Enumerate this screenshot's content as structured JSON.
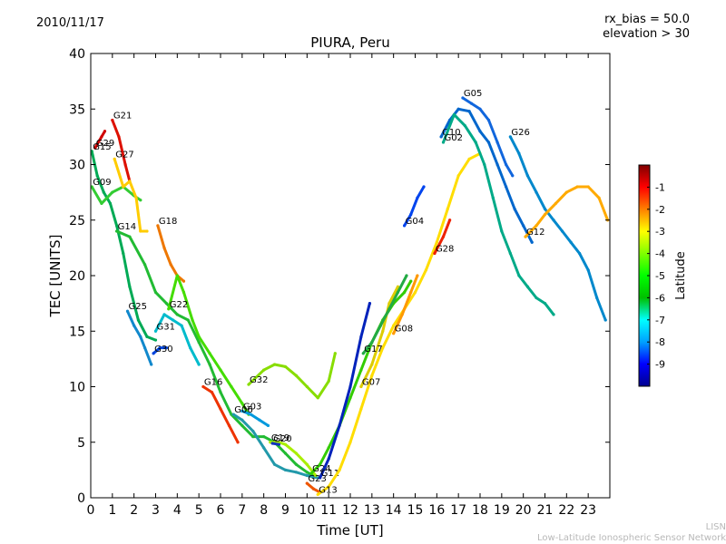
{
  "header": {
    "date": "2010/11/17",
    "rx_bias": "rx_bias = 50.0",
    "elevation": "elevation > 30"
  },
  "footer": {
    "org_short": "LISN",
    "org_full": "Low-Latitude Ionospheric Sensor Network"
  },
  "chart_data": {
    "type": "scatter",
    "title": "PIURA, Peru",
    "xlabel": "Time [UT]",
    "ylabel": "TEC [UNITS]",
    "xlim": [
      0,
      24
    ],
    "ylim": [
      0,
      40
    ],
    "xticks": [
      0,
      1,
      2,
      3,
      4,
      5,
      6,
      7,
      8,
      9,
      10,
      11,
      12,
      13,
      14,
      15,
      16,
      17,
      18,
      19,
      20,
      21,
      22,
      23
    ],
    "yticks": [
      0,
      5,
      10,
      15,
      20,
      25,
      30,
      35,
      40
    ],
    "grid": false,
    "colorbar": {
      "label": "Latitude",
      "range": [
        -10,
        0
      ],
      "ticks": [
        -1,
        -2,
        -3,
        -4,
        -5,
        -6,
        -7,
        -8,
        -9
      ],
      "colormap": [
        "#00008f",
        "#0000ff",
        "#00a0ff",
        "#00ffff",
        "#00c000",
        "#00ff00",
        "#80ff00",
        "#ffff00",
        "#ff8000",
        "#ff0000",
        "#800000"
      ]
    },
    "series": [
      {
        "name": "G29",
        "color": "#d00000",
        "points": [
          [
            0.2,
            31.5
          ],
          [
            0.5,
            32.5
          ],
          [
            0.65,
            33.0
          ]
        ]
      },
      {
        "name": "G15",
        "color": "#00aa55",
        "points": [
          [
            0.05,
            31.2
          ],
          [
            0.3,
            29.0
          ],
          [
            0.6,
            27.5
          ],
          [
            0.9,
            26.5
          ],
          [
            1.2,
            24.5
          ],
          [
            1.5,
            22.0
          ],
          [
            1.8,
            19.0
          ],
          [
            2.2,
            16.0
          ],
          [
            2.6,
            14.5
          ],
          [
            3.0,
            14.2
          ]
        ]
      },
      {
        "name": "G09",
        "color": "#33cc33",
        "points": [
          [
            0.05,
            28.0
          ],
          [
            0.5,
            26.5
          ],
          [
            1.0,
            27.5
          ],
          [
            1.5,
            28.0
          ],
          [
            2.0,
            27.2
          ],
          [
            2.3,
            26.8
          ]
        ]
      },
      {
        "name": "G21",
        "color": "#dd1100",
        "points": [
          [
            1.0,
            34.0
          ],
          [
            1.3,
            32.5
          ],
          [
            1.6,
            30.0
          ],
          [
            1.8,
            28.5
          ]
        ]
      },
      {
        "name": "G27",
        "color": "#ffcc00",
        "points": [
          [
            1.1,
            30.5
          ],
          [
            1.5,
            28.0
          ],
          [
            1.8,
            28.5
          ],
          [
            2.1,
            27.0
          ],
          [
            2.3,
            24.0
          ],
          [
            2.6,
            24.0
          ]
        ]
      },
      {
        "name": "G14",
        "color": "#22bb33",
        "points": [
          [
            1.2,
            24.0
          ],
          [
            1.8,
            23.5
          ],
          [
            2.5,
            21.0
          ],
          [
            3.0,
            18.5
          ],
          [
            3.5,
            17.5
          ],
          [
            4.0,
            16.5
          ],
          [
            4.5,
            16.0
          ],
          [
            5.0,
            14.0
          ],
          [
            5.5,
            12.0
          ],
          [
            6.0,
            9.5
          ],
          [
            6.5,
            7.5
          ],
          [
            7.0,
            6.5
          ],
          [
            7.5,
            5.5
          ],
          [
            8.0,
            5.5
          ],
          [
            8.5,
            5.0
          ],
          [
            9.0,
            4.0
          ],
          [
            9.5,
            3.0
          ],
          [
            10.0,
            2.3
          ],
          [
            10.3,
            2.0
          ]
        ]
      },
      {
        "name": "G18",
        "color": "#ee7700",
        "points": [
          [
            3.1,
            24.5
          ],
          [
            3.4,
            22.5
          ],
          [
            3.7,
            21.0
          ],
          [
            4.0,
            20.0
          ],
          [
            4.3,
            19.5
          ]
        ]
      },
      {
        "name": "G25",
        "color": "#1188cc",
        "points": [
          [
            1.7,
            16.8
          ],
          [
            2.0,
            15.5
          ],
          [
            2.3,
            14.5
          ],
          [
            2.5,
            13.5
          ],
          [
            2.8,
            12.0
          ]
        ]
      },
      {
        "name": "G31",
        "color": "#00bbcc",
        "points": [
          [
            3.0,
            15.0
          ],
          [
            3.4,
            16.5
          ],
          [
            3.8,
            16.0
          ],
          [
            4.2,
            15.5
          ],
          [
            4.6,
            13.5
          ],
          [
            5.0,
            12.0
          ]
        ]
      },
      {
        "name": "G30",
        "color": "#0044dd",
        "points": [
          [
            2.9,
            13.0
          ],
          [
            3.2,
            13.5
          ],
          [
            3.5,
            13.5
          ]
        ]
      },
      {
        "name": "G22",
        "color": "#44dd00",
        "points": [
          [
            3.6,
            17.0
          ],
          [
            4.0,
            20.0
          ],
          [
            4.3,
            18.5
          ],
          [
            4.7,
            16.0
          ],
          [
            5.0,
            14.5
          ],
          [
            5.5,
            13.0
          ],
          [
            6.0,
            11.5
          ],
          [
            6.5,
            10.0
          ],
          [
            7.0,
            8.5
          ],
          [
            7.3,
            7.5
          ]
        ]
      },
      {
        "name": "G16",
        "color": "#ee3300",
        "points": [
          [
            5.2,
            10.0
          ],
          [
            5.6,
            9.5
          ],
          [
            6.0,
            8.0
          ],
          [
            6.4,
            6.5
          ],
          [
            6.8,
            5.0
          ]
        ]
      },
      {
        "name": "G32",
        "color": "#88dd00",
        "points": [
          [
            7.3,
            10.2
          ],
          [
            8.0,
            11.5
          ],
          [
            8.5,
            12.0
          ],
          [
            9.0,
            11.8
          ],
          [
            9.5,
            11.0
          ],
          [
            10.0,
            10.0
          ],
          [
            10.5,
            9.0
          ],
          [
            11.0,
            10.5
          ],
          [
            11.3,
            13.0
          ]
        ]
      },
      {
        "name": "G03",
        "color": "#0099dd",
        "points": [
          [
            7.0,
            7.8
          ],
          [
            7.4,
            7.5
          ],
          [
            7.8,
            7.0
          ],
          [
            8.2,
            6.5
          ]
        ]
      },
      {
        "name": "G06",
        "color": "#2299aa",
        "points": [
          [
            6.6,
            7.5
          ],
          [
            7.0,
            7.0
          ],
          [
            7.5,
            6.0
          ],
          [
            8.0,
            4.5
          ],
          [
            8.5,
            3.0
          ],
          [
            9.0,
            2.5
          ],
          [
            9.5,
            2.3
          ],
          [
            10.0,
            2.0
          ],
          [
            10.5,
            1.8
          ]
        ]
      },
      {
        "name": "G19",
        "color": "#aaee00",
        "points": [
          [
            8.3,
            5.0
          ],
          [
            8.7,
            5.0
          ],
          [
            9.0,
            4.8
          ],
          [
            9.5,
            4.0
          ],
          [
            10.0,
            3.0
          ],
          [
            10.4,
            2.0
          ]
        ]
      },
      {
        "name": "G20",
        "color": "#1133bb",
        "points": [
          [
            8.4,
            4.9
          ],
          [
            8.7,
            4.8
          ]
        ]
      },
      {
        "name": "G24",
        "color": "#33cc00",
        "points": [
          [
            10.2,
            2.2
          ],
          [
            10.6,
            3.0
          ],
          [
            11.0,
            4.5
          ],
          [
            11.5,
            6.5
          ],
          [
            12.0,
            9.0
          ],
          [
            12.5,
            11.5
          ],
          [
            13.0,
            14.0
          ],
          [
            13.5,
            16.0
          ],
          [
            14.0,
            17.5
          ],
          [
            14.5,
            18.5
          ],
          [
            14.8,
            19.5
          ]
        ]
      },
      {
        "name": "G23",
        "color": "#ee5500",
        "points": [
          [
            10.0,
            1.3
          ],
          [
            10.3,
            0.8
          ],
          [
            10.6,
            0.5
          ]
        ]
      },
      {
        "name": "G11",
        "color": "#0022bb",
        "points": [
          [
            10.6,
            1.8
          ],
          [
            11.0,
            3.5
          ],
          [
            11.5,
            6.5
          ],
          [
            12.0,
            10.0
          ],
          [
            12.5,
            14.5
          ],
          [
            12.9,
            17.5
          ]
        ]
      },
      {
        "name": "G13",
        "color": "#ffdd00",
        "points": [
          [
            10.5,
            0.3
          ],
          [
            11.0,
            1.0
          ],
          [
            11.5,
            2.5
          ],
          [
            12.0,
            5.0
          ],
          [
            12.5,
            8.0
          ],
          [
            13.0,
            11.0
          ],
          [
            13.5,
            13.5
          ],
          [
            14.0,
            15.5
          ],
          [
            14.5,
            17.0
          ],
          [
            15.0,
            18.5
          ],
          [
            15.5,
            20.5
          ],
          [
            16.0,
            23.0
          ],
          [
            16.5,
            26.0
          ],
          [
            17.0,
            29.0
          ],
          [
            17.5,
            30.5
          ],
          [
            18.0,
            31.0
          ]
        ]
      },
      {
        "name": "G07",
        "color": "#ddcc00",
        "points": [
          [
            12.5,
            10.0
          ],
          [
            13.0,
            12.0
          ],
          [
            13.5,
            15.0
          ],
          [
            13.8,
            17.5
          ],
          [
            14.2,
            19.0
          ]
        ]
      },
      {
        "name": "G17",
        "color": "#22aa44",
        "points": [
          [
            12.6,
            13.0
          ],
          [
            13.0,
            14.0
          ],
          [
            13.4,
            15.5
          ],
          [
            13.8,
            17.0
          ],
          [
            14.2,
            18.5
          ],
          [
            14.6,
            20.0
          ]
        ]
      },
      {
        "name": "G08",
        "color": "#ff9900",
        "points": [
          [
            14.0,
            14.8
          ],
          [
            14.4,
            16.5
          ],
          [
            14.8,
            18.5
          ],
          [
            15.1,
            20.0
          ]
        ]
      },
      {
        "name": "G04",
        "color": "#0044ee",
        "points": [
          [
            14.5,
            24.5
          ],
          [
            14.8,
            25.5
          ],
          [
            15.1,
            27.0
          ],
          [
            15.4,
            28.0
          ]
        ]
      },
      {
        "name": "G28",
        "color": "#ee2200",
        "points": [
          [
            15.9,
            22.0
          ],
          [
            16.3,
            23.5
          ],
          [
            16.6,
            25.0
          ]
        ]
      },
      {
        "name": "G10",
        "color": "#0066cc",
        "points": [
          [
            16.2,
            32.5
          ],
          [
            16.6,
            34.0
          ],
          [
            17.0,
            35.0
          ],
          [
            17.5,
            34.8
          ],
          [
            18.0,
            33.0
          ],
          [
            18.4,
            32.0
          ],
          [
            18.8,
            30.0
          ],
          [
            19.2,
            28.0
          ],
          [
            19.6,
            26.0
          ],
          [
            20.0,
            24.5
          ],
          [
            20.4,
            23.0
          ]
        ]
      },
      {
        "name": "G02",
        "color": "#00aa88",
        "points": [
          [
            16.3,
            32.0
          ],
          [
            16.8,
            34.5
          ],
          [
            17.3,
            33.5
          ],
          [
            17.8,
            32.0
          ],
          [
            18.2,
            30.0
          ],
          [
            18.6,
            27.0
          ],
          [
            19.0,
            24.0
          ],
          [
            19.4,
            22.0
          ],
          [
            19.8,
            20.0
          ],
          [
            20.2,
            19.0
          ],
          [
            20.6,
            18.0
          ],
          [
            21.0,
            17.5
          ],
          [
            21.4,
            16.5
          ]
        ]
      },
      {
        "name": "G05",
        "color": "#1166dd",
        "points": [
          [
            17.2,
            36.0
          ],
          [
            17.6,
            35.5
          ],
          [
            18.0,
            35.0
          ],
          [
            18.4,
            34.0
          ],
          [
            18.8,
            32.0
          ],
          [
            19.2,
            30.0
          ],
          [
            19.5,
            29.0
          ]
        ]
      },
      {
        "name": "G26",
        "color": "#0088cc",
        "points": [
          [
            19.4,
            32.5
          ],
          [
            19.8,
            31.0
          ],
          [
            20.2,
            29.0
          ],
          [
            20.6,
            27.5
          ],
          [
            21.0,
            26.0
          ],
          [
            21.4,
            25.0
          ],
          [
            21.8,
            24.0
          ],
          [
            22.2,
            23.0
          ],
          [
            22.6,
            22.0
          ],
          [
            23.0,
            20.5
          ],
          [
            23.4,
            18.0
          ],
          [
            23.8,
            16.0
          ]
        ]
      },
      {
        "name": "G12",
        "color": "#ffaa00",
        "points": [
          [
            20.1,
            23.5
          ],
          [
            20.6,
            24.5
          ],
          [
            21.0,
            25.5
          ],
          [
            21.5,
            26.5
          ],
          [
            22.0,
            27.5
          ],
          [
            22.5,
            28.0
          ],
          [
            23.0,
            28.0
          ],
          [
            23.5,
            27.0
          ],
          [
            23.9,
            25.0
          ]
        ]
      }
    ]
  }
}
